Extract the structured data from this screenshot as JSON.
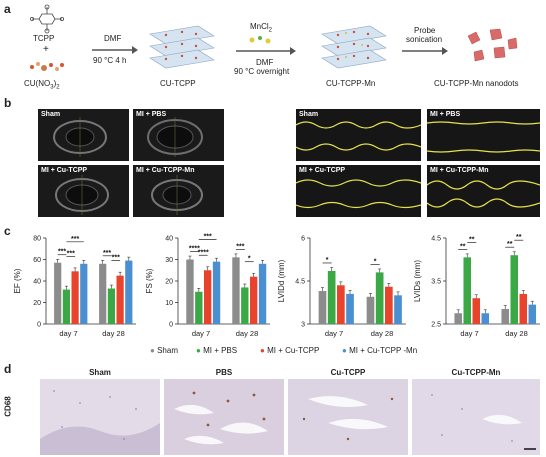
{
  "panel_a": {
    "letter": "a",
    "tcpp": "TCPP",
    "plus": "+",
    "cu": "CU(NO",
    "cu_sub": "3",
    "cu_end": ")",
    "cu_sub2": "2",
    "step1_top": "DMF",
    "step1_bottom": "90 °C 4 h",
    "step1_product": "CU-TCPP",
    "step2_top": "MnCl",
    "step2_top_sub": "2",
    "step2_mid": "DMF",
    "step2_bottom": "90 °C overnight",
    "step2_product": "CU-TCPP-Mn",
    "step3_top": "Probe",
    "step3_mid": "sonication",
    "step3_product": "CU-TCPP-Mn nanodots"
  },
  "panel_b": {
    "letter": "b",
    "echo_labels": [
      "Sham",
      "MI + PBS",
      "MI + Cu-TCPP",
      "MI + Cu-TCPP-Mn"
    ],
    "mmode_labels": [
      "Sham",
      "MI + PBS",
      "MI + Cu-TCPP",
      "MI + Cu-TCPP-Mn"
    ]
  },
  "panel_c": {
    "letter": "c",
    "legend": {
      "items": [
        {
          "label": "Sham",
          "color": "#8c8c8c"
        },
        {
          "label": "MI + PBS",
          "color": "#3aa845"
        },
        {
          "label": "MI + Cu-TCPP",
          "color": "#e8432c"
        },
        {
          "label": "MI + Cu-TCPP -Mn",
          "color": "#4a8fd0"
        }
      ]
    }
  },
  "chart_data": [
    {
      "type": "bar",
      "ylabel": "EF (%)",
      "categories": [
        "day 7",
        "day 28"
      ],
      "ylim": [
        0,
        80
      ],
      "yticks": [
        0,
        20,
        40,
        60,
        80
      ],
      "series": [
        {
          "name": "Sham",
          "values": [
            57,
            56
          ]
        },
        {
          "name": "MI + PBS",
          "values": [
            32,
            33
          ]
        },
        {
          "name": "MI + Cu-TCPP",
          "values": [
            49,
            45
          ]
        },
        {
          "name": "MI + Cu-TCPP -Mn",
          "values": [
            56,
            59
          ]
        }
      ],
      "significance": [
        "***",
        "***",
        "***",
        "***",
        "***"
      ]
    },
    {
      "type": "bar",
      "ylabel": "FS (%)",
      "categories": [
        "day 7",
        "day 28"
      ],
      "ylim": [
        0,
        40
      ],
      "yticks": [
        0,
        10,
        20,
        30,
        40
      ],
      "series": [
        {
          "name": "Sham",
          "values": [
            30,
            31
          ]
        },
        {
          "name": "MI + PBS",
          "values": [
            15,
            17
          ]
        },
        {
          "name": "MI + Cu-TCPP",
          "values": [
            25,
            22
          ]
        },
        {
          "name": "MI + Cu-TCPP -Mn",
          "values": [
            29,
            28
          ]
        }
      ],
      "significance": [
        "****",
        "****",
        "***",
        "***",
        "*"
      ]
    },
    {
      "type": "bar",
      "ylabel": "LVIDd (mm)",
      "categories": [
        "day 7",
        "day 28"
      ],
      "ylim": [
        3.0,
        6.0
      ],
      "yticks": [
        3.0,
        4.5,
        6.0
      ],
      "series": [
        {
          "name": "Sham",
          "values": [
            4.15,
            3.95
          ]
        },
        {
          "name": "MI + PBS",
          "values": [
            4.85,
            4.8
          ]
        },
        {
          "name": "MI + Cu-TCPP",
          "values": [
            4.35,
            4.3
          ]
        },
        {
          "name": "MI + Cu-TCPP -Mn",
          "values": [
            4.05,
            4.0
          ]
        }
      ],
      "significance": [
        "*",
        "*"
      ]
    },
    {
      "type": "bar",
      "ylabel": "LVIDs (mm)",
      "categories": [
        "day 7",
        "day 28"
      ],
      "ylim": [
        2.5,
        4.5
      ],
      "yticks": [
        2.5,
        3.5,
        4.5
      ],
      "series": [
        {
          "name": "Sham",
          "values": [
            2.75,
            2.85
          ]
        },
        {
          "name": "MI + PBS",
          "values": [
            4.05,
            4.1
          ]
        },
        {
          "name": "MI + Cu-TCPP",
          "values": [
            3.1,
            3.2
          ]
        },
        {
          "name": "MI + Cu-TCPP -Mn",
          "values": [
            2.75,
            2.95
          ]
        }
      ],
      "significance": [
        "**",
        "**",
        "**",
        "**"
      ]
    }
  ],
  "panel_d": {
    "letter": "d",
    "row_label": "CD68",
    "titles": [
      "Sham",
      "PBS",
      "Cu-TCPP",
      "Cu-TCPP-Mn"
    ]
  }
}
